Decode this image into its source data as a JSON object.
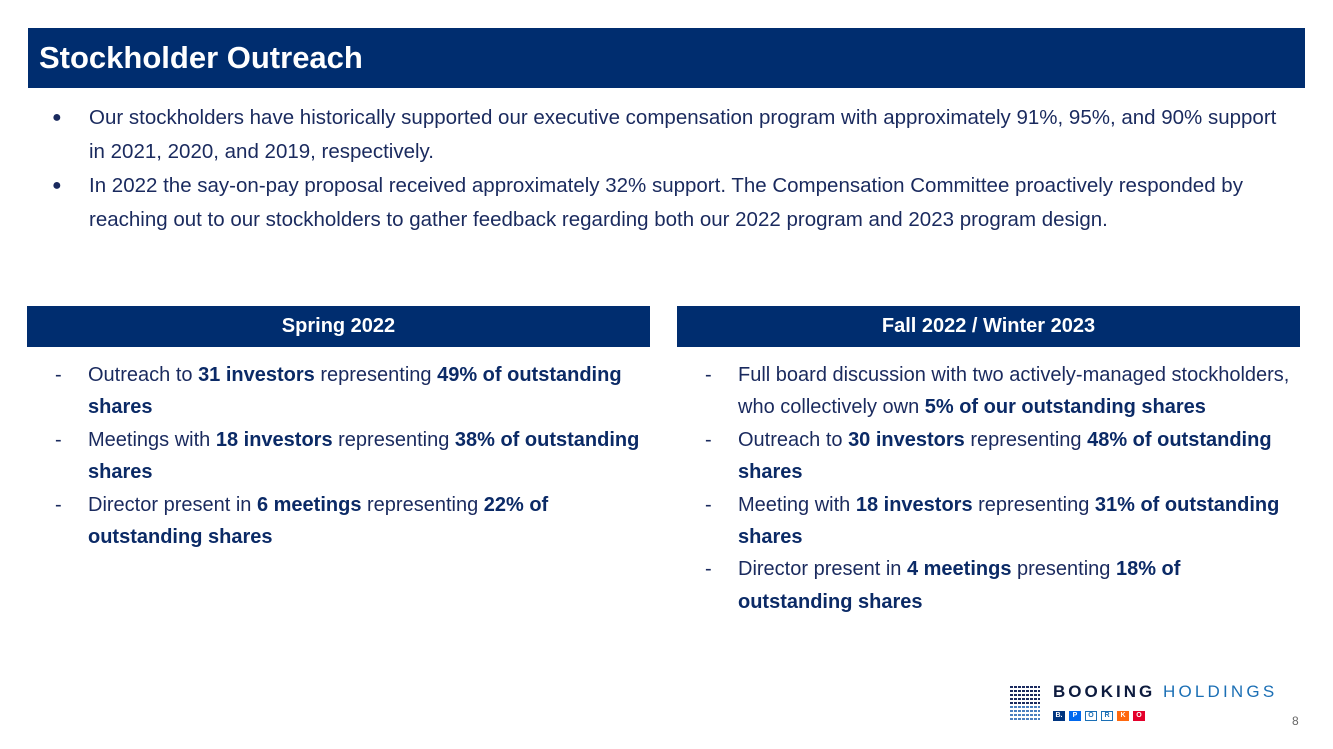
{
  "title": "Stockholder Outreach",
  "bullets": [
    "Our stockholders have historically supported our executive compensation program with approximately 91%, 95%, and 90% support in 2021, 2020, and 2019, respectively.",
    "In 2022 the say-on-pay proposal received approximately 32% support. The Compensation Committee proactively responded by reaching out to our stockholders to gather feedback regarding both our 2022 program and 2023 program design."
  ],
  "bullet_marker": "●",
  "dash": "-",
  "left": {
    "header": "Spring 2022",
    "items": [
      {
        "a": "Outreach to ",
        "b": "31 investors",
        "c": " representing ",
        "d": "49% of outstanding shares"
      },
      {
        "a": "Meetings with ",
        "b": "18 investors",
        "c": " representing ",
        "d": "38% of outstanding shares"
      },
      {
        "a": "Director present in ",
        "b": "6 meetings",
        "c": " representing ",
        "d": "22% of outstanding shares"
      }
    ]
  },
  "right": {
    "header": "Fall 2022 / Winter 2023",
    "items": [
      {
        "a": "Full board discussion with two actively-managed stockholders, who collectively own ",
        "b": "5% of our outstanding shares",
        "c": "",
        "d": ""
      },
      {
        "a": "Outreach to ",
        "b": "30 investors",
        "c": " representing ",
        "d": "48% of outstanding shares"
      },
      {
        "a": "Meeting with ",
        "b": "18 investors",
        "c": " representing ",
        "d": "31% of outstanding shares"
      },
      {
        "a": "Director present in ",
        "b": "4 meetings",
        "c": " presenting ",
        "d": "18% of outstanding shares"
      }
    ]
  },
  "logo": {
    "word1": "BOOKING",
    "word2": "HOLDINGS",
    "brands": [
      {
        "label": "B.",
        "color": "#003580"
      },
      {
        "label": "P",
        "color": "#0068ef"
      },
      {
        "label": "O",
        "color": "#ffffff"
      },
      {
        "label": "R",
        "color": "#ffffff"
      },
      {
        "label": "K",
        "color": "#ff690f"
      },
      {
        "label": "O",
        "color": "#e4002b"
      }
    ]
  },
  "page_number": "8",
  "colors": {
    "navy": "#002d6f",
    "text": "#1a2a5e"
  }
}
